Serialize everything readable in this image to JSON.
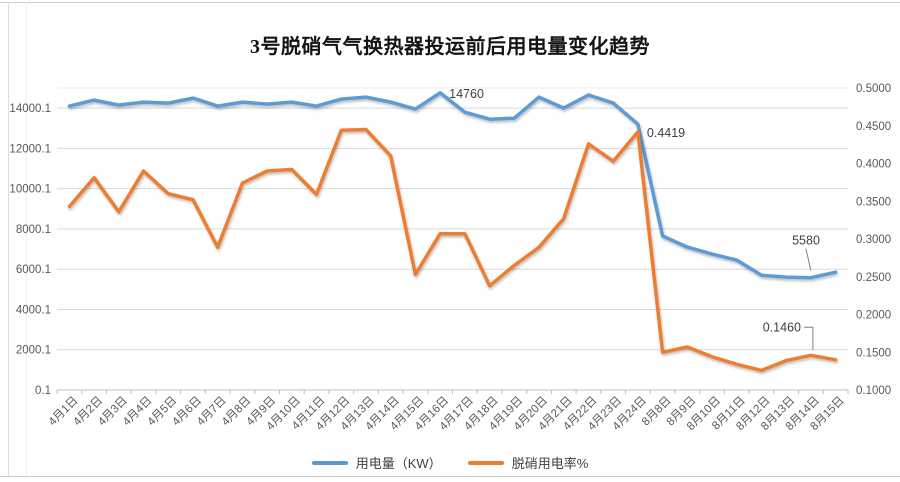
{
  "title": "3号脱硝气气换热器投运前后用电量变化趋势",
  "colors": {
    "series_blue": "#5B9BD5",
    "series_orange": "#ED7D31",
    "gridline": "#D9D9D9",
    "axis_line": "#BFBFBF",
    "tick_text": "#595959",
    "annotation_text": "#3F3F3F",
    "leader_line": "#808080"
  },
  "chart_data": {
    "type": "line",
    "title": "3号脱硝气气换热器投运前后用电量变化趋势",
    "grid": "horizontal",
    "legend_position": "bottom",
    "categories": [
      "4月1日",
      "4月2日",
      "4月3日",
      "4月4日",
      "4月5日",
      "4月6日",
      "4月7日",
      "4月8日",
      "4月9日",
      "4月10日",
      "4月11日",
      "4月12日",
      "4月13日",
      "4月14日",
      "4月15日",
      "4月16日",
      "4月17日",
      "4月18日",
      "4月19日",
      "4月20日",
      "4月21日",
      "4月22日",
      "4月23日",
      "4月24日",
      "8月8日",
      "8月9日",
      "8月10日",
      "8月11日",
      "8月12日",
      "8月13日",
      "8月14日",
      "8月15日"
    ],
    "series": [
      {
        "name": "用电量（KW）",
        "axis": "left",
        "color": "#5B9BD5",
        "values": [
          14100,
          14400,
          14150,
          14300,
          14250,
          14500,
          14100,
          14300,
          14200,
          14300,
          14100,
          14450,
          14550,
          14300,
          13950,
          14760,
          13800,
          13450,
          13500,
          14550,
          14000,
          14650,
          14250,
          13200,
          7650,
          7100,
          6750,
          6450,
          5700,
          5610,
          5580,
          5850
        ]
      },
      {
        "name": "脱硝用电率%",
        "axis": "right",
        "color": "#ED7D31",
        "values": [
          0.343,
          0.381,
          0.336,
          0.39,
          0.36,
          0.352,
          0.289,
          0.374,
          0.39,
          0.392,
          0.359,
          0.444,
          0.445,
          0.41,
          0.253,
          0.307,
          0.307,
          0.238,
          0.265,
          0.289,
          0.327,
          0.426,
          0.403,
          0.4419,
          0.15,
          0.157,
          0.144,
          0.134,
          0.126,
          0.139,
          0.146,
          0.14
        ]
      }
    ],
    "left_axis": {
      "tick_labels": [
        "14000.1",
        "12000.1",
        "10000.1",
        "8000.1",
        "6000.1",
        "4000.1",
        "2000.1",
        "0.1"
      ],
      "min": 0.1,
      "max": 15000.1,
      "major_unit": 2000
    },
    "right_axis": {
      "tick_labels": [
        "0.5000",
        "0.4500",
        "0.4000",
        "0.3500",
        "0.3000",
        "0.2500",
        "0.2000",
        "0.1500",
        "0.1000"
      ],
      "min": 0.1,
      "max": 0.5,
      "major_unit": 0.05
    },
    "annotations": [
      {
        "series_index": 0,
        "point_index": 15,
        "text": "14760",
        "placement": "e",
        "leader": false
      },
      {
        "series_index": 1,
        "point_index": 23,
        "text": "0.4419",
        "placement": "e",
        "leader": false
      },
      {
        "series_index": 0,
        "point_index": 30,
        "text": "5580",
        "placement": "ne-leader",
        "leader": true
      },
      {
        "series_index": 1,
        "point_index": 30,
        "text": "0.1460",
        "placement": "w-leader",
        "leader": true
      }
    ]
  }
}
